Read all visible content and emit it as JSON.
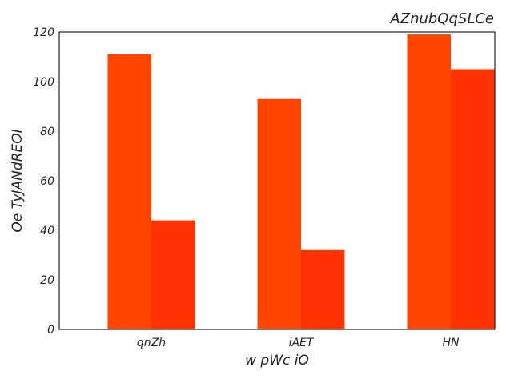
{
  "chart_data": {
    "type": "bar",
    "title": "AZnubQqSLCe",
    "xlabel": "w pWc iO",
    "ylabel": "Oe TyJANdREOI",
    "categories": [
      "qnZh",
      "iAET",
      "HN"
    ],
    "series": [
      {
        "values": [
          111,
          93,
          119
        ],
        "color": "#ff4500"
      },
      {
        "values": [
          44,
          32,
          105
        ],
        "color": "#ff3300"
      }
    ],
    "ylim": [
      0,
      120
    ],
    "yticks": [
      0,
      20,
      40,
      60,
      80,
      100,
      120
    ],
    "grid": false,
    "legend": "none"
  }
}
